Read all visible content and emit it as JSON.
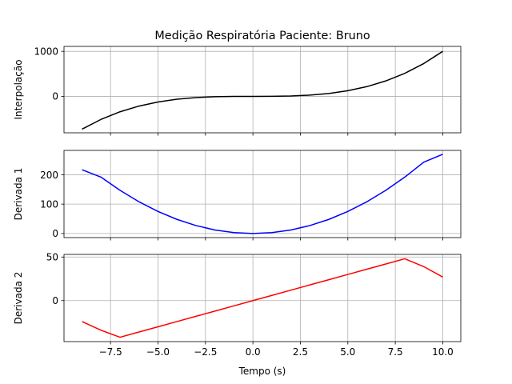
{
  "title": "Medição Respiratória Paciente: Bruno",
  "xlabel": "Tempo (s)",
  "x_ticks": [
    -7.5,
    -5.0,
    -2.5,
    0.0,
    2.5,
    5.0,
    7.5,
    10.0
  ],
  "x_tick_labels": [
    "−7.5",
    "−5.0",
    "−2.5",
    "0.0",
    "2.5",
    "5.0",
    "7.5",
    "10.0"
  ],
  "chart_data": [
    {
      "type": "line",
      "ylabel": "Interpolação",
      "xlim": [
        -9.95,
        10.95
      ],
      "ylim": [
        -810,
        1110
      ],
      "y_ticks": [
        0,
        1000
      ],
      "y_tick_labels": [
        "0",
        "1000"
      ],
      "grid": true,
      "color": "#000000",
      "x": [
        -9,
        -8,
        -7,
        -6,
        -5,
        -4,
        -3,
        -2,
        -1,
        0,
        1,
        2,
        3,
        4,
        5,
        6,
        7,
        8,
        9,
        10
      ],
      "y": [
        -729,
        -512,
        -343,
        -216,
        -125,
        -64,
        -27,
        -8,
        -1,
        0,
        1,
        8,
        27,
        64,
        125,
        216,
        343,
        512,
        729,
        1000
      ]
    },
    {
      "type": "line",
      "ylabel": "Derivada 1",
      "xlim": [
        -9.95,
        10.95
      ],
      "ylim": [
        -14,
        283
      ],
      "y_ticks": [
        0,
        100,
        200
      ],
      "y_tick_labels": [
        "0",
        "100",
        "200"
      ],
      "grid": true,
      "color": "#0000ff",
      "x": [
        -9,
        -8,
        -7,
        -6,
        -5,
        -4,
        -3,
        -2,
        -1,
        0,
        1,
        2,
        3,
        4,
        5,
        6,
        7,
        8,
        9,
        10
      ],
      "y": [
        217,
        192,
        147,
        108,
        75,
        48,
        27,
        12,
        3,
        0,
        3,
        12,
        27,
        48,
        75,
        108,
        147,
        192,
        243,
        270
      ]
    },
    {
      "type": "line",
      "ylabel": "Derivada 2",
      "xlim": [
        -9.95,
        10.95
      ],
      "ylim": [
        -47,
        53
      ],
      "y_ticks": [
        0,
        50
      ],
      "y_tick_labels": [
        "0",
        "50"
      ],
      "grid": true,
      "color": "#ff0000",
      "x": [
        -9,
        -8,
        -7,
        -6,
        -5,
        -4,
        -3,
        -2,
        -1,
        0,
        1,
        2,
        3,
        4,
        5,
        6,
        7,
        8,
        9,
        10
      ],
      "y": [
        -24,
        -34,
        -42,
        -36,
        -30,
        -24,
        -18,
        -12,
        -6,
        0,
        6,
        12,
        18,
        24,
        30,
        36,
        42,
        48,
        39,
        27
      ]
    }
  ]
}
